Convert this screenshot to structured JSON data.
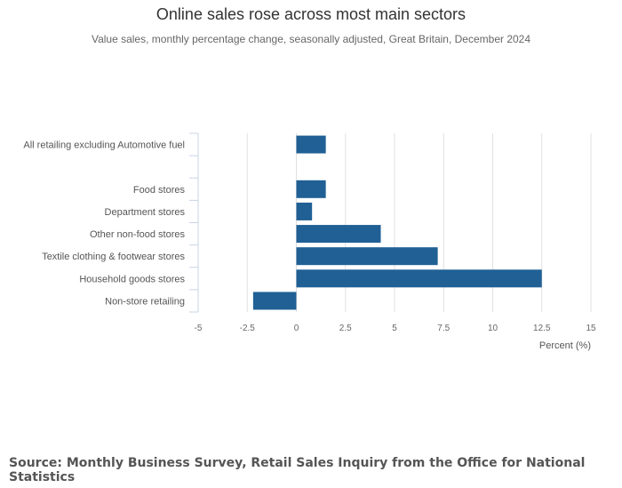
{
  "chart_data": {
    "type": "bar",
    "orientation": "horizontal",
    "title": "Online sales rose across most main sectors",
    "subtitle": "Value sales, monthly percentage change, seasonally adjusted, Great Britain, December 2024",
    "categories": [
      "All retailing excluding Automotive fuel",
      "",
      "Food stores",
      "Department stores",
      "Other non-food stores",
      "Textile clothing & footwear stores",
      "Household goods stores",
      "Non-store retailing"
    ],
    "values": [
      1.5,
      null,
      1.5,
      0.8,
      4.3,
      7.2,
      12.5,
      -2.2
    ],
    "xlabel": "Percent (%)",
    "ylabel": "",
    "xlim": [
      -5,
      15
    ],
    "xticks": [
      -5,
      -2.5,
      0,
      2.5,
      5,
      7.5,
      10,
      12.5,
      15
    ],
    "xtick_labels": [
      "-5",
      "-2.5",
      "0",
      "2.5",
      "5",
      "7.5",
      "10",
      "12.5",
      "15"
    ],
    "grid": true,
    "bar_color": "#206095"
  },
  "footer": {
    "source": "Source: Monthly Business Survey, Retail Sales Inquiry from the Office for National Statistics"
  }
}
